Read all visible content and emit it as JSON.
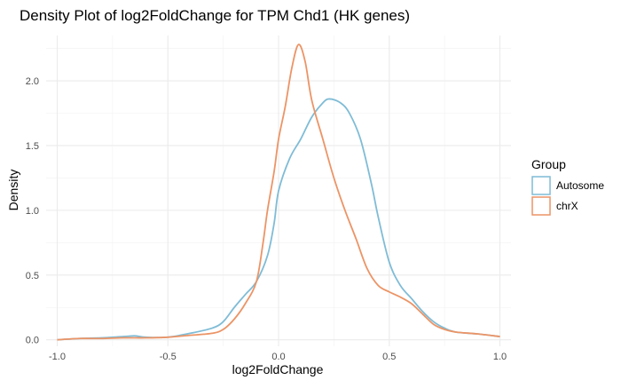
{
  "chart_data": {
    "type": "line",
    "title": "Density Plot of log2FoldChange for TPM Chd1 (HK genes)",
    "xlabel": "log2FoldChange",
    "ylabel": "Density",
    "xlim": [
      -1.05,
      1.05
    ],
    "ylim": [
      -0.05,
      2.35
    ],
    "x_ticks": [
      -1.0,
      -0.5,
      0.0,
      0.5,
      1.0
    ],
    "x_tick_labels": [
      "-1.0",
      "-0.5",
      "0.0",
      "0.5",
      "1.0"
    ],
    "y_ticks": [
      0.0,
      0.5,
      1.0,
      1.5,
      2.0
    ],
    "y_tick_labels": [
      "0.0",
      "0.5",
      "1.0",
      "1.5",
      "2.0"
    ],
    "grid": true,
    "legend_position": "right",
    "legend_title": "Group",
    "series": [
      {
        "name": "Autosome",
        "color": "#7fbcd6",
        "points": [
          [
            -1.0,
            0.0
          ],
          [
            -0.9,
            0.01
          ],
          [
            -0.8,
            0.015
          ],
          [
            -0.7,
            0.025
          ],
          [
            -0.65,
            0.03
          ],
          [
            -0.6,
            0.02
          ],
          [
            -0.5,
            0.02
          ],
          [
            -0.4,
            0.05
          ],
          [
            -0.3,
            0.09
          ],
          [
            -0.25,
            0.14
          ],
          [
            -0.2,
            0.25
          ],
          [
            -0.15,
            0.35
          ],
          [
            -0.1,
            0.45
          ],
          [
            -0.05,
            0.65
          ],
          [
            -0.02,
            0.9
          ],
          [
            0.0,
            1.15
          ],
          [
            0.05,
            1.4
          ],
          [
            0.1,
            1.55
          ],
          [
            0.15,
            1.72
          ],
          [
            0.2,
            1.83
          ],
          [
            0.23,
            1.86
          ],
          [
            0.28,
            1.83
          ],
          [
            0.32,
            1.75
          ],
          [
            0.37,
            1.55
          ],
          [
            0.42,
            1.2
          ],
          [
            0.45,
            0.95
          ],
          [
            0.5,
            0.6
          ],
          [
            0.55,
            0.42
          ],
          [
            0.6,
            0.32
          ],
          [
            0.65,
            0.22
          ],
          [
            0.7,
            0.14
          ],
          [
            0.75,
            0.09
          ],
          [
            0.8,
            0.06
          ],
          [
            0.9,
            0.045
          ],
          [
            1.0,
            0.025
          ]
        ]
      },
      {
        "name": "chrX",
        "color": "#ec9466",
        "points": [
          [
            -1.0,
            0.0
          ],
          [
            -0.9,
            0.01
          ],
          [
            -0.8,
            0.01
          ],
          [
            -0.7,
            0.015
          ],
          [
            -0.6,
            0.015
          ],
          [
            -0.5,
            0.02
          ],
          [
            -0.4,
            0.035
          ],
          [
            -0.3,
            0.05
          ],
          [
            -0.25,
            0.08
          ],
          [
            -0.2,
            0.16
          ],
          [
            -0.15,
            0.28
          ],
          [
            -0.1,
            0.45
          ],
          [
            -0.07,
            0.75
          ],
          [
            -0.05,
            1.0
          ],
          [
            -0.02,
            1.3
          ],
          [
            0.0,
            1.55
          ],
          [
            0.03,
            1.8
          ],
          [
            0.06,
            2.1
          ],
          [
            0.09,
            2.28
          ],
          [
            0.12,
            2.15
          ],
          [
            0.15,
            1.85
          ],
          [
            0.2,
            1.55
          ],
          [
            0.25,
            1.25
          ],
          [
            0.3,
            1.0
          ],
          [
            0.35,
            0.78
          ],
          [
            0.4,
            0.55
          ],
          [
            0.45,
            0.42
          ],
          [
            0.5,
            0.37
          ],
          [
            0.55,
            0.33
          ],
          [
            0.6,
            0.28
          ],
          [
            0.65,
            0.2
          ],
          [
            0.7,
            0.12
          ],
          [
            0.75,
            0.08
          ],
          [
            0.8,
            0.06
          ],
          [
            0.9,
            0.045
          ],
          [
            1.0,
            0.025
          ]
        ]
      }
    ]
  }
}
